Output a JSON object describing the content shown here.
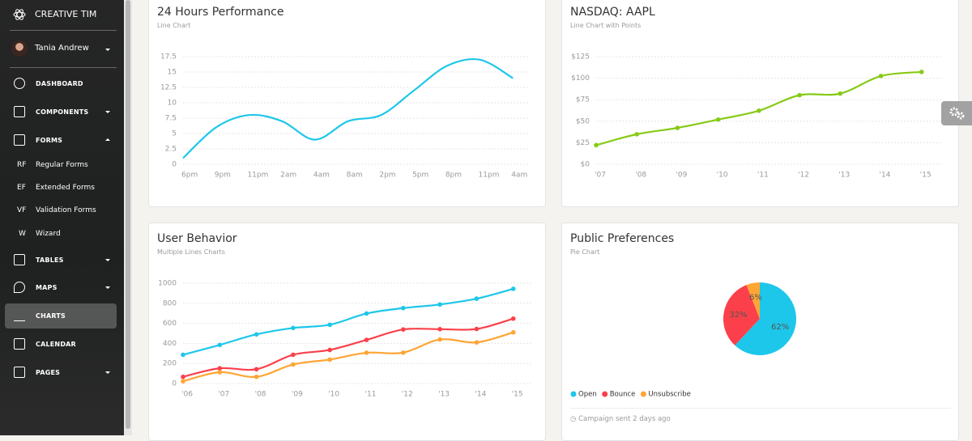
{
  "sidebar": {
    "brand": "CREATIVE TIM",
    "user": "Tania Andrew",
    "nav": [
      {
        "label": "DASHBOARD"
      },
      {
        "label": "COMPONENTS"
      },
      {
        "label": "FORMS",
        "children": [
          {
            "abbr": "RF",
            "label": "Regular Forms"
          },
          {
            "abbr": "EF",
            "label": "Extended Forms"
          },
          {
            "abbr": "VF",
            "label": "Validation Forms"
          },
          {
            "abbr": "W",
            "label": "Wizard"
          }
        ]
      },
      {
        "label": "TABLES"
      },
      {
        "label": "MAPS"
      },
      {
        "label": "CHARTS"
      },
      {
        "label": "CALENDAR"
      },
      {
        "label": "PAGES"
      }
    ]
  },
  "chart_data": [
    {
      "type": "line",
      "title": "24 Hours Performance",
      "subtitle": "Line Chart",
      "categories": [
        "6pm",
        "9pm",
        "11pm",
        "2am",
        "4am",
        "8am",
        "2pm",
        "5pm",
        "8pm",
        "11pm",
        "4am"
      ],
      "values": [
        1,
        6,
        8,
        7,
        4,
        7,
        8,
        12,
        16,
        17,
        14
      ],
      "color": "#1dc7ea",
      "ylim": [
        0,
        17.5
      ],
      "yticks": [
        0,
        2.5,
        5,
        7.5,
        10,
        12.5,
        15,
        17.5
      ],
      "grid": true,
      "points": false
    },
    {
      "type": "line",
      "title": "NASDAQ: AAPL",
      "subtitle": "Line Chart with Points",
      "categories": [
        "'07",
        "'08",
        "'09",
        "'10",
        "'11",
        "'12",
        "'13",
        "'14",
        "'15"
      ],
      "values": [
        22.2,
        34.9,
        42.28,
        51.93,
        62.21,
        80.23,
        82.12,
        102.5,
        107.23
      ],
      "color": "#87cb16",
      "ylim": [
        0,
        125
      ],
      "yticks": [
        {
          "value": 0,
          "label": "$0"
        },
        {
          "value": 25,
          "label": "$25"
        },
        {
          "value": 50,
          "label": "$50"
        },
        {
          "value": 75,
          "label": "$75"
        },
        {
          "value": 100,
          "label": "$100"
        },
        {
          "value": 125,
          "label": "$125"
        }
      ],
      "grid": true,
      "points": true
    },
    {
      "type": "multiline",
      "title": "User Behavior",
      "subtitle": "Multiple Lines Charts",
      "categories": [
        "'06",
        "'07",
        "'08",
        "'09",
        "'10",
        "'11",
        "'12",
        "'13",
        "'14",
        "'15"
      ],
      "series": [
        {
          "color": "#1dc7ea",
          "values": [
            287,
            385,
            490,
            554,
            586,
            698,
            752,
            788,
            846,
            944
          ]
        },
        {
          "color": "#fb404b",
          "values": [
            67,
            152,
            143,
            287,
            335,
            435,
            539,
            542,
            544,
            647
          ]
        },
        {
          "color": "#ffa534",
          "values": [
            23,
            113,
            67,
            190,
            239,
            307,
            308,
            439,
            410,
            510
          ]
        }
      ],
      "ylim": [
        0,
        1000
      ],
      "yticks": [
        0,
        200,
        400,
        600,
        800,
        1000
      ],
      "grid": true,
      "points": true
    },
    {
      "type": "pie",
      "title": "Public Preferences",
      "subtitle": "Pie Chart",
      "categories": [
        "Open",
        "Bounce",
        "Unsubscribe"
      ],
      "values": [
        62,
        32,
        6
      ],
      "value_labels": [
        "62%",
        "32%",
        "6%"
      ],
      "colors": [
        "#1dc7ea",
        "#fb404b",
        "#ffa534"
      ],
      "footer": "Campaign sent 2 days ago"
    }
  ]
}
